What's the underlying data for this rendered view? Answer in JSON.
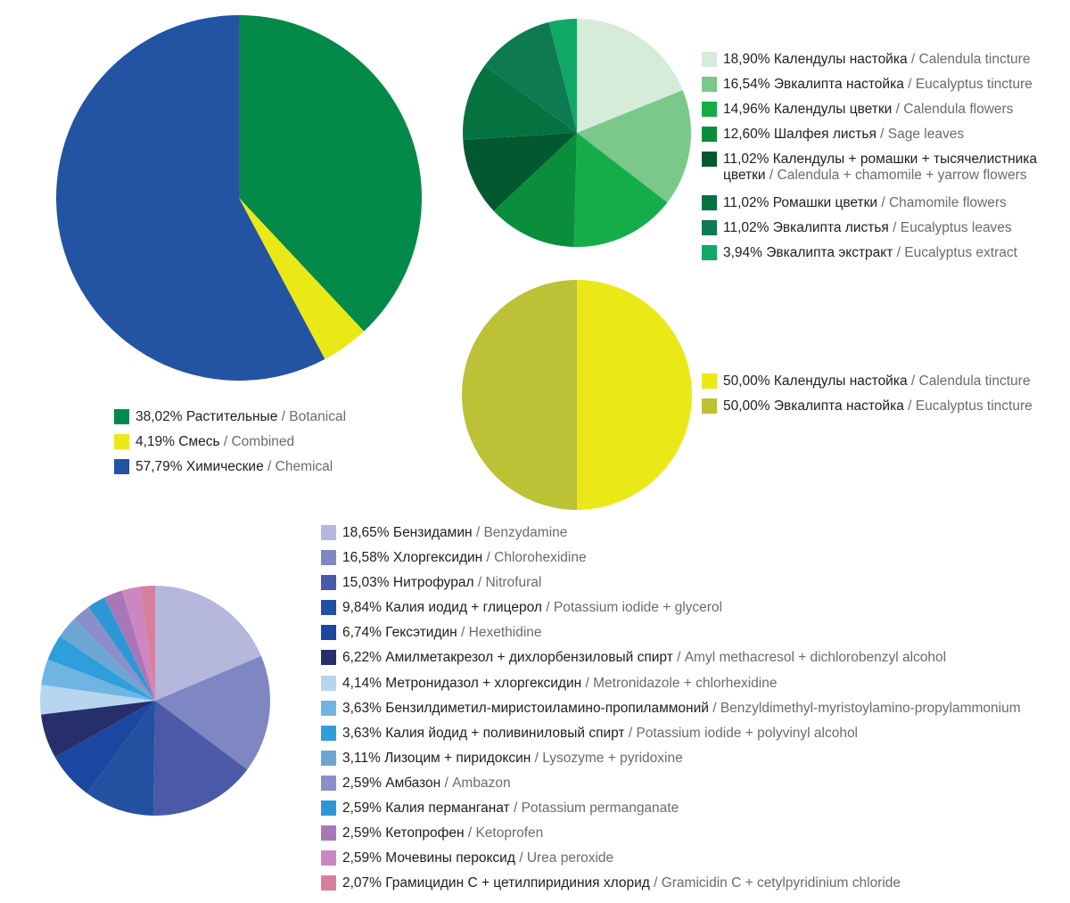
{
  "chart_data": [
    {
      "id": "main",
      "type": "pie",
      "title": "",
      "slices": [
        {
          "percent_label": "38,02%",
          "ru": "Растительные",
          "en": "Botanical",
          "value": 38.02,
          "color": "#038a48"
        },
        {
          "percent_label": "4,19%",
          "ru": "Смесь",
          "en": "Combined",
          "value": 4.19,
          "color": "#ebe818"
        },
        {
          "percent_label": "57,79%",
          "ru": "Химические",
          "en": "Chemical",
          "value": 57.79,
          "color": "#2353a3"
        }
      ]
    },
    {
      "id": "botanical",
      "type": "pie",
      "title": "",
      "slices": [
        {
          "percent_label": "18,90%",
          "ru": "Календулы настойка",
          "en": "Calendula tincture",
          "value": 18.9,
          "color": "#d5ecd9"
        },
        {
          "percent_label": "16,54%",
          "ru": "Эвкалипта настойка",
          "en": "Eucalyptus tincture",
          "value": 16.54,
          "color": "#7bc88b"
        },
        {
          "percent_label": "14,96%",
          "ru": "Календулы цветки",
          "en": "Calendula flowers",
          "value": 14.96,
          "color": "#14ad4a"
        },
        {
          "percent_label": "12,60%",
          "ru": "Шалфея листья",
          "en": "Sage leaves",
          "value": 12.6,
          "color": "#0a8e3b"
        },
        {
          "percent_label": "11,02%",
          "ru": "Календулы + ромашки + тысячелистника цветки",
          "en": "Calendula + chamomile + yarrow flowers",
          "value": 11.02,
          "color": "#02582f"
        },
        {
          "percent_label": "11,02%",
          "ru": "Ромашки цветки",
          "en": "Chamomile flowers",
          "value": 11.02,
          "color": "#05733f"
        },
        {
          "percent_label": "11,02%",
          "ru": "Эвкалипта листья",
          "en": "Eucalyptus leaves",
          "value": 11.02,
          "color": "#0d7a52"
        },
        {
          "percent_label": "3,94%",
          "ru": "Эвкалипта экстракт",
          "en": "Eucalyptus extract",
          "value": 3.94,
          "color": "#12a868"
        }
      ]
    },
    {
      "id": "combined",
      "type": "pie",
      "title": "",
      "slices": [
        {
          "percent_label": "50,00%",
          "ru": "Календулы настойка",
          "en": "Calendula tincture",
          "value": 50.0,
          "color": "#ebe818"
        },
        {
          "percent_label": "50,00%",
          "ru": "Эвкалипта настойка",
          "en": "Eucalyptus tincture",
          "value": 50.0,
          "color": "#bcc135"
        }
      ]
    },
    {
      "id": "chemical",
      "type": "pie",
      "title": "",
      "slices": [
        {
          "percent_label": "18,65%",
          "ru": "Бензидамин",
          "en": "Benzydamine",
          "value": 18.65,
          "color": "#b5b7dd"
        },
        {
          "percent_label": "16,58%",
          "ru": "Хлоргексидин",
          "en": "Chlorohexidine",
          "value": 16.58,
          "color": "#7f87c3"
        },
        {
          "percent_label": "15,03%",
          "ru": "Нитрофурал",
          "en": "Nitrofural",
          "value": 15.03,
          "color": "#4a5aa8"
        },
        {
          "percent_label": "9,84%",
          "ru": "Калия иодид + глицерол",
          "en": "Potassium iodide + glycerol",
          "value": 9.84,
          "color": "#2350a0"
        },
        {
          "percent_label": "6,74%",
          "ru": "Гексэтидин",
          "en": "Hexethidine",
          "value": 6.74,
          "color": "#1c47a0"
        },
        {
          "percent_label": "6,22%",
          "ru": "Амилметакрезол + дихлорбензиловый спирт",
          "en": "Amyl methacresol + dichlorobenzyl alcohol",
          "value": 6.22,
          "color": "#272f6a"
        },
        {
          "percent_label": "4,14%",
          "ru": "Метронидазол + хлоргексидин",
          "en": "Metronidazole + chlorhexidine",
          "value": 4.14,
          "color": "#b6d6f0"
        },
        {
          "percent_label": "3,63%",
          "ru": "Бензилдиметил-миристоиламино-пропиламмоний",
          "en": "Benzyldimethyl-myristoylamino-propylammonium",
          "value": 3.63,
          "color": "#6fb5e3"
        },
        {
          "percent_label": "3,63%",
          "ru": "Калия йодид + поливиниловый спирт",
          "en": "Potassium iodide + polyvinyl alcohol",
          "value": 3.63,
          "color": "#2f9fdc"
        },
        {
          "percent_label": "3,11%",
          "ru": "Лизоцим + пиридоксин",
          "en": "Lysozyme + pyridoxine",
          "value": 3.11,
          "color": "#6ea6d3"
        },
        {
          "percent_label": "2,59%",
          "ru": "Амбазон",
          "en": "Ambazon",
          "value": 2.59,
          "color": "#8a8fc8"
        },
        {
          "percent_label": "2,59%",
          "ru": "Калия перманганат",
          "en": "Potassium permanganate",
          "value": 2.59,
          "color": "#2d97d6"
        },
        {
          "percent_label": "2,59%",
          "ru": "Кетопрофен",
          "en": "Ketoprofen",
          "value": 2.59,
          "color": "#a678b8"
        },
        {
          "percent_label": "2,59%",
          "ru": "Мочевины пероксид",
          "en": "Urea peroxide",
          "value": 2.59,
          "color": "#cd86bf"
        },
        {
          "percent_label": "2,07%",
          "ru": "Грамицидин С + цетилпиридиния хлорид",
          "en": "Gramicidin C + cetylpyridinium chloride",
          "value": 2.07,
          "color": "#d7809e"
        }
      ]
    }
  ]
}
